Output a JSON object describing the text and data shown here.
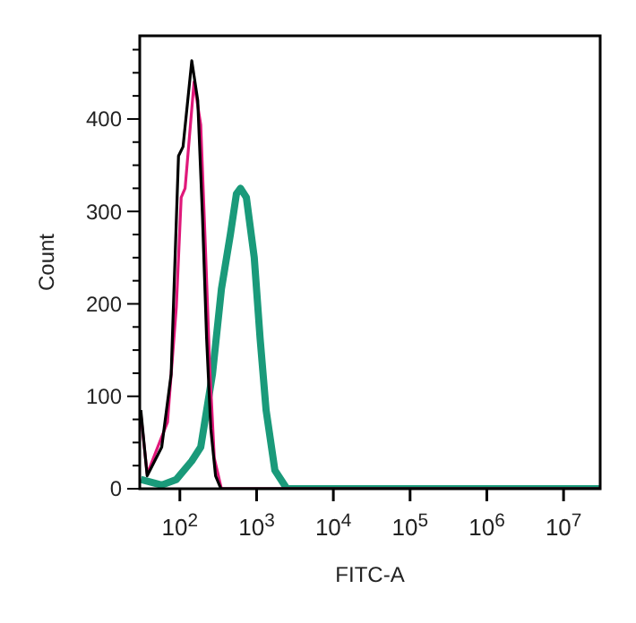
{
  "chart_data": {
    "type": "line",
    "xlabel": "FITC-A",
    "ylabel": "Count",
    "log": "x",
    "xlim": [
      30,
      30000000
    ],
    "ylim": [
      0,
      490
    ],
    "xticks": [
      {
        "value": 100,
        "label": "10$^{2}$"
      },
      {
        "value": 1000,
        "label": "10$^{3}$"
      },
      {
        "value": 10000,
        "label": "10$^{4}$"
      },
      {
        "value": 100000,
        "label": "10$^{5}$"
      },
      {
        "value": 1000000,
        "label": "10$^{6}$"
      },
      {
        "value": 10000000,
        "label": "10$^{7}$"
      }
    ],
    "yticks": [
      0,
      {
        "value": 25,
        "label": null
      },
      {
        "value": 50,
        "label": null
      },
      {
        "value": 75,
        "label": null
      },
      100,
      {
        "value": 125,
        "label": null
      },
      {
        "value": 150,
        "label": null
      },
      {
        "value": 175,
        "label": null
      },
      200,
      {
        "value": 225,
        "label": null
      },
      {
        "value": 250,
        "label": null
      },
      {
        "value": 275,
        "label": null
      },
      300,
      {
        "value": 325,
        "label": null
      },
      {
        "value": 350,
        "label": null
      },
      {
        "value": 375,
        "label": null
      },
      400,
      {
        "value": 425,
        "label": null
      },
      {
        "value": 450,
        "label": null
      },
      {
        "value": 475,
        "label": null
      }
    ],
    "grid": false,
    "marker": "none",
    "line_style": "solid",
    "series": [
      {
        "color": "#1a9a7a",
        "x": [
          31,
          58,
          90,
          143,
          187,
          266,
          348,
          455,
          546,
          617,
          736,
          932,
          1110,
          1330,
          1730,
          2480,
          30000000
        ],
        "values": [
          10,
          4,
          10,
          30,
          45,
          124,
          216,
          275,
          319,
          325,
          315,
          250,
          163,
          85,
          20,
          0,
          0
        ]
      },
      {
        "color": "#e0187a",
        "x": [
          31,
          37.5,
          69,
          90,
          104,
          117,
          153,
          187,
          215,
          245,
          281,
          348,
          30000000
        ],
        "values": [
          80,
          16,
          72,
          197,
          315,
          325,
          440,
          394,
          262,
          132,
          33,
          0,
          0
        ]
      },
      {
        "color": "#000000",
        "x": [
          31,
          37.5,
          58,
          77,
          96,
          110,
          143,
          171,
          197,
          223,
          253,
          292,
          343,
          30000000
        ],
        "values": [
          85,
          14,
          45,
          124,
          360,
          370,
          463,
          420,
          295,
          163,
          65,
          14,
          0,
          0
        ]
      }
    ]
  }
}
